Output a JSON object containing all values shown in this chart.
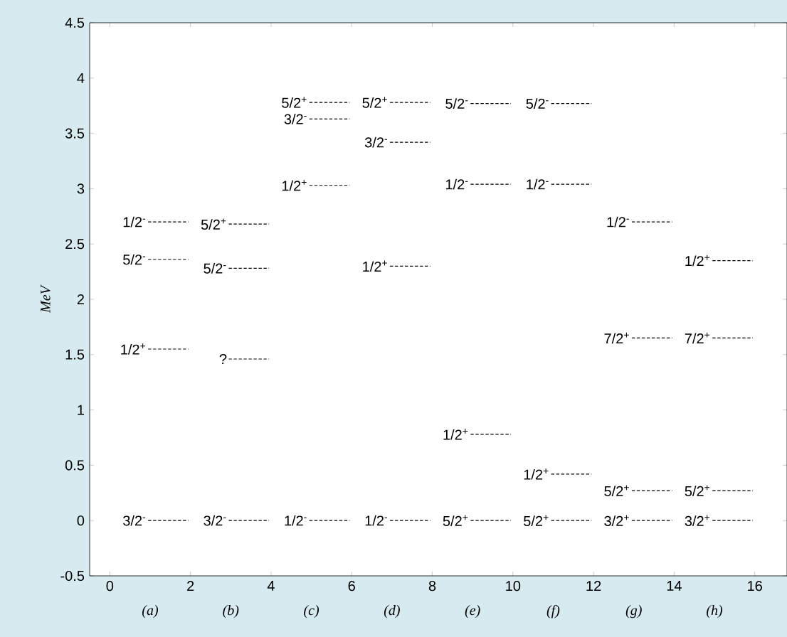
{
  "chart_data": {
    "type": "line",
    "ylabel": "MeV",
    "xlim": [
      -0.5,
      16.8
    ],
    "ylim": [
      -0.5,
      4.5
    ],
    "xticks": [
      0,
      2,
      4,
      6,
      8,
      10,
      12,
      14,
      16
    ],
    "yticks": [
      -0.5,
      0,
      0.5,
      1,
      1.5,
      2,
      2.5,
      3,
      3.5,
      4,
      4.5
    ],
    "line_style": "dashed",
    "marker": "none",
    "annotations": [
      "(a)",
      "(b)",
      "(c)",
      "(d)",
      "(e)",
      "(f)",
      "(g)",
      "(h)"
    ],
    "series": [
      {
        "name": "3/2$^{-}$",
        "color": "#000000",
        "x": [
          0.95,
          1.95
        ],
        "values": [
          0,
          0
        ]
      },
      {
        "name": "1/2$^{+}$",
        "color": "#000000",
        "x": [
          0.95,
          1.95
        ],
        "values": [
          1.55,
          1.55
        ]
      },
      {
        "name": "5/2$^{-}$",
        "color": "#000000",
        "x": [
          0.95,
          1.95
        ],
        "values": [
          2.36,
          2.36
        ]
      },
      {
        "name": "1/2$^{-}$",
        "color": "#000000",
        "x": [
          0.95,
          1.95
        ],
        "values": [
          2.7,
          2.7
        ]
      },
      {
        "name": "3/2$^{-}$",
        "color": "#000000",
        "x": [
          2.95,
          3.95
        ],
        "values": [
          0,
          0
        ]
      },
      {
        "name": "?",
        "color": "#000000",
        "x": [
          2.95,
          3.95
        ],
        "values": [
          1.46,
          1.46
        ]
      },
      {
        "name": "5/2$^{-}$",
        "color": "#000000",
        "x": [
          2.95,
          3.95
        ],
        "values": [
          2.28,
          2.28
        ]
      },
      {
        "name": "5/2$^{+}$",
        "color": "#000000",
        "x": [
          2.95,
          3.95
        ],
        "values": [
          2.68,
          2.68
        ]
      },
      {
        "name": "1/2$^{-}$",
        "color": "#000000",
        "x": [
          4.95,
          5.95
        ],
        "values": [
          0,
          0
        ]
      },
      {
        "name": "1/2$^{+}$",
        "color": "#000000",
        "x": [
          4.95,
          5.95
        ],
        "values": [
          3.03,
          3.03
        ]
      },
      {
        "name": "3/2$^{-}$",
        "color": "#000000",
        "x": [
          4.95,
          5.95
        ],
        "values": [
          3.63,
          3.63
        ]
      },
      {
        "name": "5/2$^{+}$",
        "color": "#000000",
        "x": [
          4.95,
          5.95
        ],
        "values": [
          3.78,
          3.78
        ]
      },
      {
        "name": "1/2$^{-}$",
        "color": "#000000",
        "x": [
          6.95,
          7.95
        ],
        "values": [
          0,
          0
        ]
      },
      {
        "name": "1/2$^{+}$",
        "color": "#000000",
        "x": [
          6.95,
          7.95
        ],
        "values": [
          2.3,
          2.3
        ]
      },
      {
        "name": "3/2$^{-}$",
        "color": "#000000",
        "x": [
          6.95,
          7.95
        ],
        "values": [
          3.42,
          3.42
        ]
      },
      {
        "name": "5/2$^{+}$",
        "color": "#000000",
        "x": [
          6.95,
          7.95
        ],
        "values": [
          3.78,
          3.78
        ]
      },
      {
        "name": "5/2$^{+}$",
        "color": "#000000",
        "x": [
          8.95,
          9.95
        ],
        "values": [
          0,
          0
        ]
      },
      {
        "name": "1/2$^{+}$",
        "color": "#000000",
        "x": [
          8.95,
          9.95
        ],
        "values": [
          0.78,
          0.78
        ]
      },
      {
        "name": "1/2$^{-}$",
        "color": "#000000",
        "x": [
          8.95,
          9.95
        ],
        "values": [
          3.04,
          3.04
        ]
      },
      {
        "name": "5/2$^{-}$",
        "color": "#000000",
        "x": [
          8.95,
          9.95
        ],
        "values": [
          3.77,
          3.77
        ]
      },
      {
        "name": "5/2$^{+}$",
        "color": "#000000",
        "x": [
          10.95,
          11.95
        ],
        "values": [
          0,
          0
        ]
      },
      {
        "name": "1/2$^{+}$",
        "color": "#000000",
        "x": [
          10.95,
          11.95
        ],
        "values": [
          0.42,
          0.42
        ]
      },
      {
        "name": "1/2$^{-}$",
        "color": "#000000",
        "x": [
          10.95,
          11.95
        ],
        "values": [
          3.04,
          3.04
        ]
      },
      {
        "name": "5/2$^{-}$",
        "color": "#000000",
        "x": [
          10.95,
          11.95
        ],
        "values": [
          3.77,
          3.77
        ]
      },
      {
        "name": "3/2$^{+}$",
        "color": "#000000",
        "x": [
          12.95,
          13.95
        ],
        "values": [
          0,
          0
        ]
      },
      {
        "name": "5/2$^{+}$",
        "color": "#000000",
        "x": [
          12.95,
          13.95
        ],
        "values": [
          0.27,
          0.27
        ]
      },
      {
        "name": "7/2$^{+}$",
        "color": "#000000",
        "x": [
          12.95,
          13.95
        ],
        "values": [
          1.65,
          1.65
        ]
      },
      {
        "name": "1/2$^{-}$",
        "color": "#000000",
        "x": [
          12.95,
          13.95
        ],
        "values": [
          2.7,
          2.7
        ]
      },
      {
        "name": "3/2$^{+}$",
        "color": "#000000",
        "x": [
          14.95,
          15.95
        ],
        "values": [
          0,
          0
        ]
      },
      {
        "name": "5/2$^{+}$",
        "color": "#000000",
        "x": [
          14.95,
          15.95
        ],
        "values": [
          0.27,
          0.27
        ]
      },
      {
        "name": "7/2$^{+}$",
        "color": "#000000",
        "x": [
          14.95,
          15.95
        ],
        "values": [
          1.65,
          1.65
        ]
      },
      {
        "name": "1/2$^{+}$",
        "color": "#000000",
        "x": [
          14.95,
          15.95
        ],
        "values": [
          2.35,
          2.35
        ]
      }
    ]
  }
}
